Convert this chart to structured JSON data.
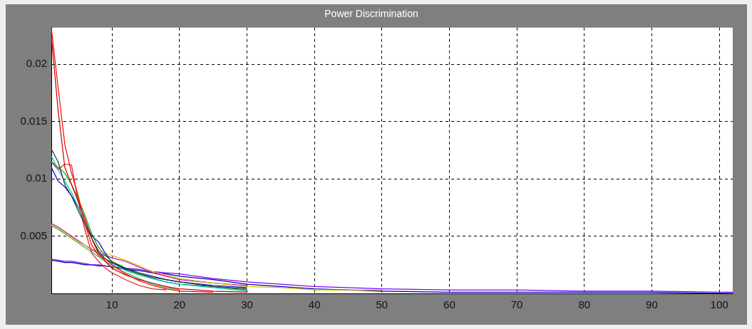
{
  "chart_data": {
    "type": "line",
    "title": "Power Discrimination",
    "x": [
      1,
      2,
      3,
      4,
      5,
      6,
      7,
      8,
      9,
      10,
      12,
      14,
      16,
      18,
      20,
      25,
      30,
      35,
      40,
      50,
      60,
      70,
      80,
      90,
      102
    ],
    "series": [
      {
        "color": "#ff0000",
        "values": [
          0.0232,
          0.018,
          0.013,
          0.0105,
          0.0085,
          0.006,
          0.0042,
          0.0033,
          0.003,
          0.0025,
          0.0017,
          0.0011,
          0.0007,
          0.0004,
          0.0002,
          0.0001,
          null,
          null,
          null,
          null,
          null,
          null,
          null,
          null,
          null
        ]
      },
      {
        "color": "#c00000",
        "values": [
          0.0225,
          0.016,
          0.011,
          0.0095,
          0.008,
          0.0065,
          0.0048,
          0.0035,
          0.0028,
          0.0022,
          0.0016,
          0.0012,
          0.0009,
          0.0006,
          0.0004,
          0.0002,
          0.0001,
          null,
          null,
          null,
          null,
          null,
          null,
          null,
          null
        ]
      },
      {
        "color": "#303030",
        "values": [
          0.0126,
          0.0115,
          0.0095,
          0.0085,
          0.0072,
          0.006,
          0.0048,
          0.0037,
          0.003,
          0.0027,
          0.0022,
          0.0018,
          0.0015,
          0.0012,
          0.001,
          0.0006,
          0.0004,
          null,
          null,
          null,
          null,
          null,
          null,
          null,
          null
        ]
      },
      {
        "color": "#00c0c0",
        "values": [
          0.012,
          0.0108,
          0.0098,
          0.0088,
          0.0075,
          0.0062,
          0.0048,
          0.0035,
          0.003,
          0.0026,
          0.002,
          0.0016,
          0.0013,
          0.001,
          0.0008,
          0.0005,
          0.0002,
          null,
          null,
          null,
          null,
          null,
          null,
          null,
          null
        ]
      },
      {
        "color": "#00a000",
        "values": [
          0.0115,
          0.011,
          0.0105,
          0.0095,
          0.0082,
          0.0068,
          0.0052,
          0.004,
          0.0033,
          0.0028,
          0.0022,
          0.0017,
          0.0013,
          0.001,
          0.0008,
          0.0006,
          0.0003,
          null,
          null,
          null,
          null,
          null,
          null,
          null,
          null
        ]
      },
      {
        "color": "#0000c0",
        "values": [
          0.011,
          0.0098,
          0.0093,
          0.0085,
          0.0075,
          0.0062,
          0.005,
          0.0045,
          0.0035,
          0.0027,
          0.0021,
          0.0017,
          0.0014,
          0.0012,
          0.001,
          0.0007,
          0.0005,
          null,
          null,
          null,
          null,
          null,
          null,
          null,
          null
        ]
      },
      {
        "color": "#d02020",
        "values": [
          0.0115,
          0.0108,
          0.0113,
          0.0112,
          0.008,
          0.0055,
          0.0035,
          0.0028,
          0.0022,
          0.0018,
          0.0012,
          0.0007,
          0.0004,
          0.0003,
          null,
          null,
          null,
          null,
          null,
          null,
          null,
          null,
          null,
          null,
          null
        ]
      },
      {
        "color": "#d0c000",
        "values": [
          0.006,
          0.0057,
          0.0053,
          0.0049,
          0.0045,
          0.0042,
          0.0039,
          0.0037,
          0.0035,
          0.0033,
          0.0029,
          0.0024,
          0.0019,
          0.0016,
          0.0013,
          0.0009,
          0.0006,
          0.0005,
          0.0003,
          0.0003,
          null,
          null,
          null,
          null,
          null
        ]
      },
      {
        "color": "#c000c0",
        "values": [
          0.0061,
          0.0058,
          0.0054,
          0.005,
          0.0046,
          0.0042,
          0.0038,
          0.0035,
          0.0033,
          0.0031,
          0.0028,
          0.0023,
          0.0018,
          0.0015,
          0.0012,
          0.0009,
          0.0007,
          null,
          null,
          null,
          null,
          null,
          null,
          null,
          null
        ]
      },
      {
        "color": "#40b040",
        "values": [
          0.0059,
          0.0056,
          0.0052,
          0.0048,
          0.0044,
          0.004,
          0.0036,
          0.0032,
          0.0028,
          0.0024,
          0.0018,
          0.0013,
          0.0008,
          0.0005,
          0.0003,
          null,
          null,
          null,
          null,
          null,
          null,
          null,
          null,
          null,
          null
        ]
      },
      {
        "color": "#8000ff",
        "values": [
          0.003,
          0.0029,
          0.0028,
          0.0028,
          0.0027,
          0.0026,
          0.0025,
          0.0025,
          0.0024,
          0.0023,
          0.0022,
          0.0021,
          0.0019,
          0.0018,
          0.0017,
          0.0013,
          0.001,
          0.0008,
          0.0006,
          0.0004,
          0.0003,
          0.0003,
          0.0002,
          0.0002,
          0.0001
        ]
      },
      {
        "color": "#0000a0",
        "values": [
          0.0029,
          0.0028,
          0.0027,
          0.0027,
          0.0026,
          0.0025,
          0.0025,
          0.0024,
          0.0024,
          0.0023,
          0.0021,
          0.002,
          0.0018,
          0.0017,
          0.0015,
          0.0012,
          0.0008,
          0.0006,
          0.0004,
          0.0002,
          0.0001,
          0.0001,
          0.0001,
          0.0001,
          0
        ]
      }
    ],
    "xlim": [
      1,
      102
    ],
    "ylim": [
      0,
      0.0232
    ],
    "xticks": [
      10,
      20,
      30,
      40,
      50,
      60,
      70,
      80,
      90,
      100
    ],
    "yticks": [
      0.005,
      0.01,
      0.015,
      0.02
    ],
    "grid": true,
    "legend": false,
    "marker": "none"
  }
}
